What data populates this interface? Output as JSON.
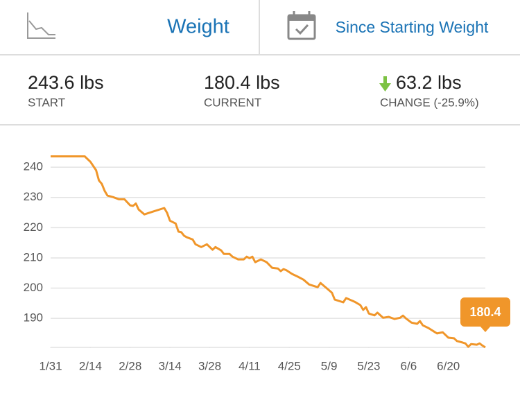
{
  "header": {
    "left_title": "Weight",
    "right_title": "Since Starting Weight"
  },
  "stats": [
    {
      "value": "243.6 lbs",
      "label": "START"
    },
    {
      "value": "180.4 lbs",
      "label": "CURRENT"
    },
    {
      "value": "63.2 lbs",
      "label": "CHANGE (-25.9%)"
    }
  ],
  "chart_data": {
    "type": "line",
    "color": "#f0962a",
    "grid": true,
    "x": [
      31,
      43,
      45,
      47,
      48,
      49,
      50,
      51,
      53,
      55,
      57,
      59,
      60,
      61,
      62,
      64,
      67,
      71,
      72,
      73,
      75,
      76,
      77,
      78,
      79,
      81,
      82,
      84,
      86,
      88,
      89,
      91,
      92,
      94,
      95,
      97,
      99,
      100,
      101,
      102,
      103,
      105,
      107,
      109,
      111,
      112,
      113,
      114,
      116,
      118,
      120,
      122,
      125,
      126,
      128,
      130,
      131,
      134,
      135,
      138,
      140,
      141,
      142,
      143,
      145,
      146,
      148,
      150,
      152,
      154,
      155,
      156,
      158,
      160,
      161,
      162,
      164,
      166,
      167,
      169,
      171,
      173,
      174,
      176,
      177,
      178,
      179,
      181,
      182,
      183,
      184
    ],
    "values": [
      243.6,
      243.6,
      241.8,
      239,
      235.6,
      234.5,
      232.2,
      230.6,
      230.1,
      229.4,
      229.4,
      227.4,
      227.2,
      228,
      226,
      224.4,
      225.3,
      226.5,
      224.9,
      222.3,
      221.4,
      218.7,
      218.5,
      217.3,
      216.8,
      216.1,
      214.5,
      213.6,
      214.5,
      212.7,
      213.6,
      212.5,
      211.3,
      211.3,
      210.4,
      209.5,
      209.5,
      210.4,
      209.9,
      210.4,
      208.6,
      209.5,
      208.6,
      206.7,
      206.5,
      205.6,
      206.3,
      205.9,
      204.7,
      203.8,
      202.8,
      201.2,
      200.3,
      201.7,
      200.1,
      198.5,
      196.2,
      195.3,
      196.7,
      195.5,
      194.4,
      192.8,
      193.7,
      191.6,
      191,
      191.9,
      190.2,
      190.5,
      189.8,
      190.2,
      190.9,
      190,
      188.6,
      188.2,
      189.1,
      187.7,
      186.8,
      185.6,
      185,
      185.4,
      183.6,
      183.4,
      182.5,
      182,
      181.7,
      180.6,
      181.5,
      181.3,
      181.7,
      181,
      180.4
    ],
    "xlim": [
      31,
      184
    ],
    "xticks": [
      {
        "value": 31,
        "label": "1/31"
      },
      {
        "value": 45,
        "label": "2/14"
      },
      {
        "value": 59,
        "label": "2/28"
      },
      {
        "value": 73,
        "label": "3/14"
      },
      {
        "value": 87,
        "label": "3/28"
      },
      {
        "value": 101,
        "label": "4/11"
      },
      {
        "value": 115,
        "label": "4/25"
      },
      {
        "value": 129,
        "label": "5/9"
      },
      {
        "value": 143,
        "label": "5/23"
      },
      {
        "value": 157,
        "label": "6/6"
      },
      {
        "value": 171,
        "label": "6/20"
      }
    ],
    "ylim": [
      180.4,
      246
    ],
    "yticks": [
      190,
      200,
      210,
      220,
      230,
      240
    ]
  }
}
